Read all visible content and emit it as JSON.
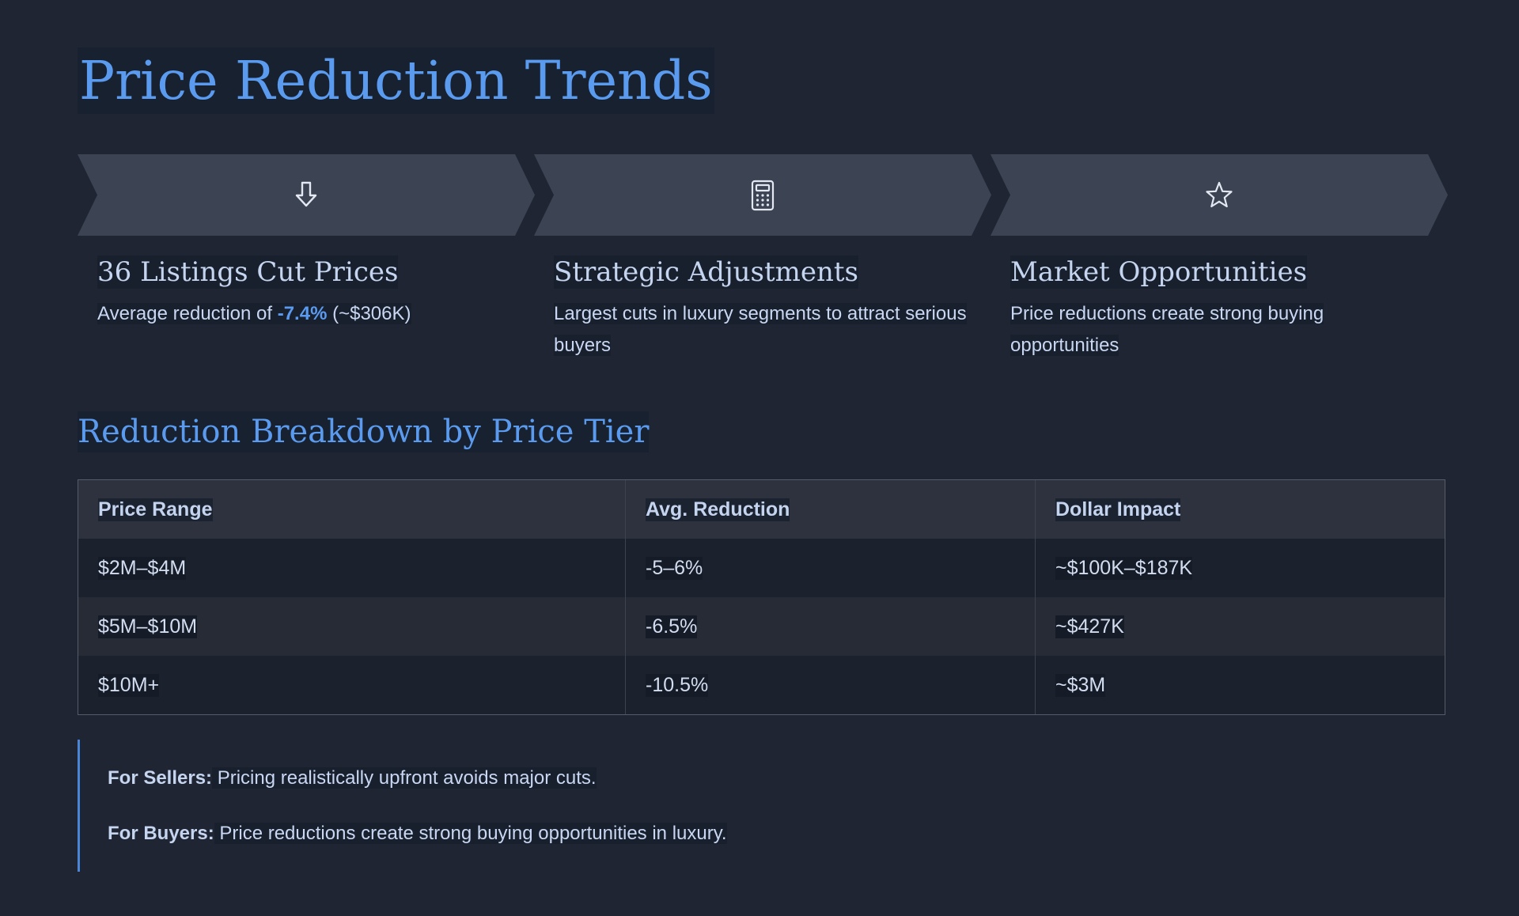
{
  "title": "Price Reduction Trends",
  "steps": [
    {
      "icon": "arrow-down-icon"
    },
    {
      "icon": "calculator-icon"
    },
    {
      "icon": "star-icon"
    }
  ],
  "cards": [
    {
      "heading": "36 Listings Cut Prices",
      "text_before": "Average reduction of ",
      "accent": "-7.4%",
      "text_after": " (~$306K)"
    },
    {
      "heading": "Strategic Adjustments",
      "text": "Largest cuts in luxury segments to attract serious buyers"
    },
    {
      "heading": "Market Opportunities",
      "text": "Price reductions create strong buying opportunities"
    }
  ],
  "breakdown": {
    "title": "Reduction Breakdown by Price Tier",
    "headers": [
      "Price Range",
      "Avg. Reduction",
      "Dollar Impact"
    ],
    "rows": [
      [
        "$2M–$4M",
        "-5–6%",
        "~$100K–$187K"
      ],
      [
        "$5M–$10M",
        "-6.5%",
        "~$427K"
      ],
      [
        "$10M+",
        "-10.5%",
        "~$3M"
      ]
    ]
  },
  "notes": [
    {
      "label": "For Sellers:",
      "text": " Pricing realistically upfront avoids major cuts."
    },
    {
      "label": "For Buyers:",
      "text": " Price reductions create strong buying opportunities in luxury."
    }
  ],
  "colors": {
    "background": "#1f2533",
    "accent": "#5b9bef",
    "chevron": "#3c4453"
  }
}
